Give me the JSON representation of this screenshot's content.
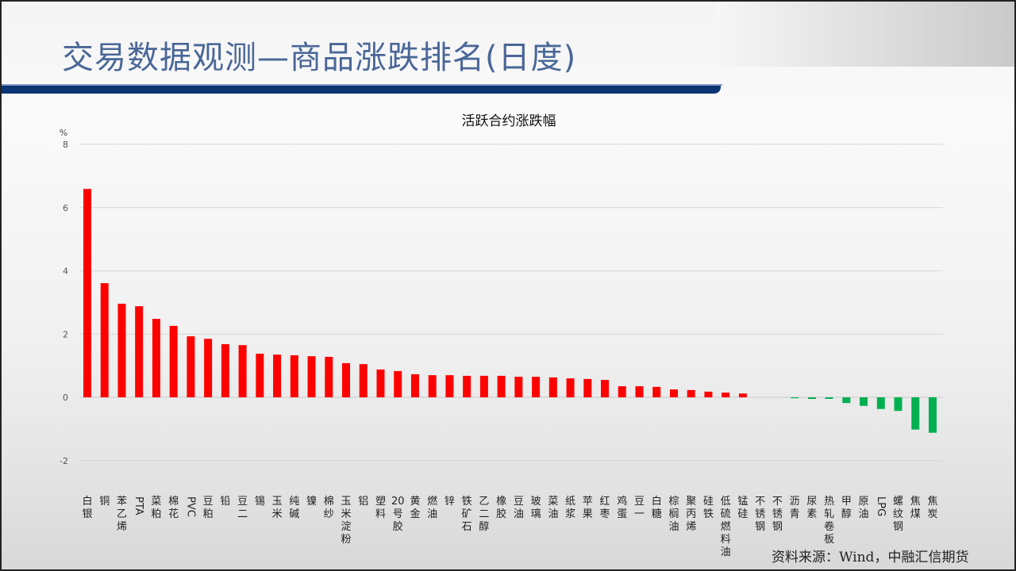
{
  "slide": {
    "title": "交易数据观测—商品涨跌排名(日度)",
    "source": "资料来源：Wind，中融汇信期货"
  },
  "colors": {
    "up": "#ff0000",
    "down": "#00b050",
    "title": "#4a6798",
    "title_bar": "#0b3472"
  },
  "chart_data": {
    "type": "bar",
    "title": "活跃合约涨跌幅",
    "ylabel": "%",
    "xlabel": "",
    "ylim": [
      -2,
      8
    ],
    "yticks": [
      -2,
      0,
      2,
      4,
      6,
      8
    ],
    "grid": true,
    "legend": "none",
    "categories": [
      "白银",
      "铜",
      "苯乙烯",
      "PTA",
      "菜粕",
      "棉花",
      "PVC",
      "豆粕",
      "铅",
      "豆二",
      "锡",
      "玉米",
      "纯碱",
      "镍",
      "棉纱",
      "玉米淀粉",
      "铝",
      "塑料",
      "20号胶",
      "黄金",
      "燃油",
      "锌",
      "铁矿石",
      "乙二醇",
      "橡胶",
      "豆油",
      "玻璃",
      "菜油",
      "纸浆",
      "苹果",
      "红枣",
      "鸡蛋",
      "豆一",
      "白糖",
      "棕榈油",
      "聚丙烯",
      "硅铁",
      "低硫燃料油",
      "锰硅",
      "不锈钢",
      "不锈钢",
      "沥青",
      "尿素",
      "热轧卷板",
      "甲醇",
      "原油",
      "LPG",
      "螺纹钢",
      "焦煤",
      "焦炭"
    ],
    "values": [
      6.59,
      3.61,
      2.96,
      2.88,
      2.48,
      2.26,
      1.93,
      1.85,
      1.68,
      1.65,
      1.38,
      1.35,
      1.33,
      1.3,
      1.28,
      1.08,
      1.05,
      0.88,
      0.83,
      0.73,
      0.7,
      0.7,
      0.68,
      0.68,
      0.68,
      0.65,
      0.65,
      0.63,
      0.6,
      0.58,
      0.55,
      0.35,
      0.35,
      0.33,
      0.25,
      0.23,
      0.18,
      0.15,
      0.12,
      0.0,
      0.0,
      -0.03,
      -0.05,
      -0.05,
      -0.18,
      -0.27,
      -0.37,
      -0.43,
      -1.02,
      -1.12
    ]
  }
}
